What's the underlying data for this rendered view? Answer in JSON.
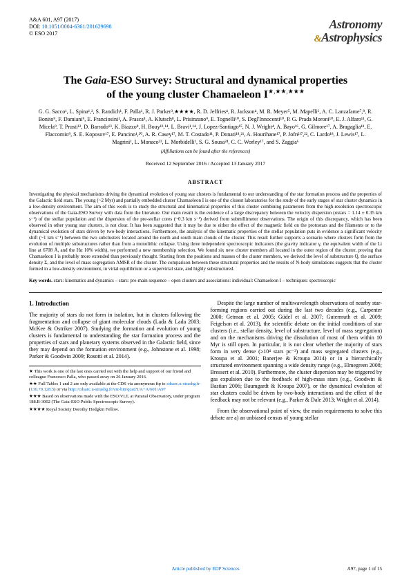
{
  "header": {
    "journal_line": "A&A 601, A97 (2017)",
    "doi_label": "DOI: ",
    "doi": "10.1051/0004-6361/201629698",
    "copyright": "© ESO 2017",
    "logo_top": "Astronomy",
    "logo_amp": "&",
    "logo_bottom": "Astrophysics"
  },
  "title": {
    "line1_prefix": "The ",
    "line1_ital": "Gaia",
    "line1_rest": "-ESO Survey: Structural and dynamical properties",
    "line2": "of the young cluster Chamaeleon I",
    "stars": "★,★★,★★★"
  },
  "authors": "G. G. Sacco¹, L. Spina¹,², S. Randich¹, F. Palla¹, R. J. Parker³,★★★★, R. D. Jeffries⁴, R. Jackson⁴, M. R. Meyer⁵, M. Mapelli⁶, A. C. Lanzafame⁷,⁸, R. Bonito⁹, F. Damiani⁹, E. Franciosini¹, A. Frasca⁸, A. Klutsch⁸, L. Prisinzano⁹, E. Tognelli¹⁰, S. Degl'Innocenti¹⁰, P. G. Prada Moroni¹⁰, E. J. Alfaro¹¹, G. Micela⁹, T. Prusti¹², D. Barrado¹³, K. Biazzo⁸, H. Bouy¹³,¹⁴, L. Bravi¹,¹⁴, J. Lopez-Santiago¹⁵, N. J. Wright⁴, A. Bayo¹⁶, G. Gilmore¹⁷, A. Bragaglia¹⁸, E. Flaccomio⁹, S. E. Koposov¹⁷, E. Pancino¹,²⁰, A. R. Casey¹⁷, M. T. Costado¹¹, P. Donati¹⁸,²¹, A. Hourihane¹⁷, P. Jofré¹⁷,²², C. Lardo¹⁸, J. Lewis¹⁷, L. Magrini¹, L. Monaco²³, L. Morbidelli¹, S. G. Sousa²⁴, C. C. Worley¹⁷, and S. Zaggia⁶",
  "affil_note": "(Affiliations can be found after the references)",
  "dates": "Received 12 September 2016 / Accepted 13 January 2017",
  "abstract_heading": "ABSTRACT",
  "abstract_body": "Investigating the physical mechanisms driving the dynamical evolution of young star clusters is fundamental to our understanding of the star formation process and the properties of the Galactic field stars. The young (~2 Myr) and partially embedded cluster Chamaeleon I is one of the closest laboratories for the study of the early stages of star cluster dynamics in a low-density environment. The aim of this work is to study the structural and kinematical properties of this cluster combining parameters from the high-resolution spectroscopic observations of the Gaia-ESO Survey with data from the literature. Our main result is the evidence of a large discrepancy between the velocity dispersion (σstars = 1.14 ± 0.35 km s⁻¹) of the stellar population and the dispersion of the pre-stellar cores (~0.3 km s⁻¹) derived from submillimeter observations. The origin of this discrepancy, which has been observed in other young star clusters, is not clear. It has been suggested that it may be due to either the effect of the magnetic field on the protostars and the filaments or to the dynamical evolution of stars driven by two-body interactions. Furthermore, the analysis of the kinematic properties of the stellar population puts in evidence a significant velocity shift (~1 km s⁻¹) between the two subclusters located around the north and south main clouds of the cluster. This result further supports a scenario where clusters form from the evolution of multiple substructures rather than from a monolithic collapse. Using three independent spectroscopic indicators (the gravity indicator γ, the equivalent width of the Li line at 6708 Å, and the Hα 10% width), we performed a new membership selection. We found six new cluster members all located in the outer region of the cluster, proving that Chamaeleon I is probably more extended than previously thought. Starting from the positions and masses of the cluster members, we derived the level of substructure Q, the surface density Σ, and the level of mass segregation ΛMSR of the cluster. The comparison between these structural properties and the results of N-body simulations suggests that the cluster formed in a low-density environment, in virial equilibrium or a supervirial state, and highly substructured.",
  "keywords": {
    "label": "Key words.",
    "text": " stars: kinematics and dynamics – stars: pre-main sequence – open clusters and associations: individual: Chamaeleon I – techniques: spectroscopic"
  },
  "section1": {
    "heading": "1. Introduction",
    "p1": "The majority of stars do not form in isolation, but in clusters following the fragmentation and collapse of giant molecular clouds (Lada & Lada 2003; McKee & Ostriker 2007). Studying the formation and evolution of young clusters is fundamental to understanding the star formation process and the properties of stars and planetary systems observed in the Galactic field, since they may depend on the formation environment (e.g., Johnstone et al. 1998; Parker & Goodwin 2009; Rosotti et al. 2014).",
    "p2a": "Despite the large number of multiwavelength observations of nearby star-forming regions carried out during the last two decades (e.g., Carpenter 2000; Getman et al. 2005; Güdel et al. 2007; Gutermuth et al. 2009; Feigelson et al. 2013), the scientific debate on the initial conditions of star clusters (i.e., stellar density, level of substructure, level of mass segregation) and on the mechanisms driving the dissolution of most of them within 10 Myr is still open. In particular, it is not clear whether the majority of stars form in very dense (≥10⁴ stars pc⁻³) and mass segregated clusters (e.g., Kroupa et al. 2001; Banerjee & Kroupa 2014) or in a hierarchically structured environment spanning a wide density range (e.g., Elmegreen 2008; Bressert et al. 2010). Furthermore, the cluster dispersion may be triggered by gas expulsion due to the feedback of high-mass stars (e.g., Goodwin & Bastian 2006; Baumgardt & Kroupa 2007), or the dynamical evolution of star clusters could be driven by two-body interactions and the effect of the feedback may not be relevant (e.g., Parker & Dale 2013; Wright et al. 2014).",
    "p2b": "From the observational point of view, the main requirements to solve this debate are a) an unbiased census of young stellar"
  },
  "footnotes": {
    "f1": "★ This work is one of the last ones carried out with the help and support of our friend and colleague Francesco Palla, who passed away on 26 January 2016.",
    "f2a": "★★ Full Tables 1 and 2 are only available at the CDS via anonymous ftp to ",
    "f2_link1": "cdsarc.u-strasbg.fr",
    "f2b": " (",
    "f2_link2": "130.79.128.5",
    "f2c": ") or via ",
    "f2_link3": "http://cdsarc.u-strasbg.fr/viz-bin/qcat?J/A+A/601/A97",
    "f3": "★★★ Based on observations made with the ESO/VLT, at Paranal Observatory, under program 188.B-3002 (The Gaia-ESO Public Spectroscopic Survey).",
    "f4": "★★★★ Royal Society Dorothy Hodgkin Fellow."
  },
  "footer": {
    "publisher": "Article published by EDP Sciences",
    "page": "A97, page 1 of 15"
  }
}
